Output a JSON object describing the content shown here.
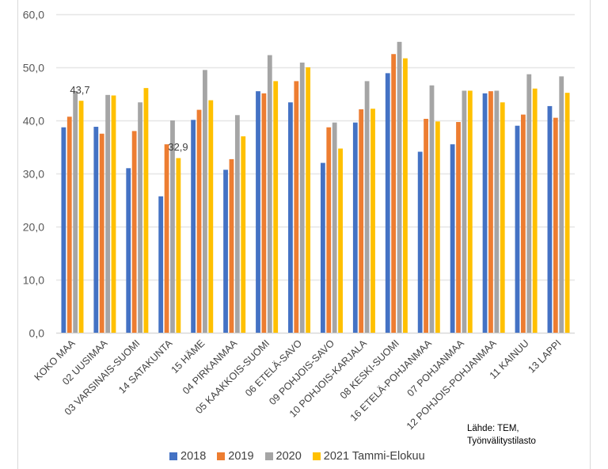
{
  "chart_data": {
    "type": "bar",
    "title": "",
    "xlabel": "",
    "ylabel": "",
    "ylim": [
      0,
      60
    ],
    "yticks": [
      "0,0",
      "10,0",
      "20,0",
      "30,0",
      "40,0",
      "50,0",
      "60,0"
    ],
    "ytick_values": [
      0,
      10,
      20,
      30,
      40,
      50,
      60
    ],
    "grid": true,
    "legend_position": "bottom",
    "categories": [
      "KOKO MAA",
      "02 UUSIMAA",
      "03 VARSINAIS-SUOMI",
      "14 SATAKUNTA",
      "15 HÄME",
      "04 PIRKANMAA",
      "05 KAAKKOIS-SUOMI",
      "06 ETELÄ-SAVO",
      "09 POHJOIS-SAVO",
      "10 POHJOIS-KARJALA",
      "08 KESKI-SUOMI",
      "16 ETELÄ-POHJANMAA",
      "07 POHJANMAA",
      "12 POHJOIS-POHJANMAA",
      "11 KAINUU",
      "13 LAPPI"
    ],
    "series": [
      {
        "name": "2018",
        "color": "#4472C4",
        "values": [
          38.7,
          38.8,
          31.0,
          25.7,
          40.1,
          30.7,
          45.5,
          43.4,
          32.0,
          39.6,
          48.9,
          34.1,
          35.5,
          45.1,
          39.0,
          42.7
        ]
      },
      {
        "name": "2019",
        "color": "#ED7D31",
        "values": [
          40.7,
          37.5,
          38.0,
          35.5,
          42.0,
          32.7,
          45.1,
          47.4,
          38.7,
          42.1,
          52.5,
          40.3,
          39.7,
          45.5,
          41.1,
          40.5
        ]
      },
      {
        "name": "2020",
        "color": "#A5A5A5",
        "values": [
          45.5,
          44.8,
          43.4,
          40.0,
          49.5,
          41.0,
          52.3,
          50.9,
          39.6,
          47.4,
          54.8,
          46.6,
          45.6,
          45.6,
          48.7,
          48.3
        ]
      },
      {
        "name": "2021 Tammi-Elokuu",
        "color": "#FFC000",
        "values": [
          43.7,
          44.7,
          46.1,
          32.9,
          43.8,
          37.0,
          47.4,
          50.0,
          34.7,
          42.2,
          51.7,
          39.8,
          45.6,
          43.4,
          46.0,
          45.2
        ]
      }
    ],
    "annotations": [
      {
        "text": "43,7",
        "category": "KOKO MAA",
        "series": "2021 Tammi-Elokuu"
      },
      {
        "text": "32,9",
        "category": "14 SATAKUNTA",
        "series": "2021 Tammi-Elokuu"
      }
    ]
  },
  "source": {
    "line1": "Lähde: TEM,",
    "line2": "Työnvälitystilasto"
  }
}
